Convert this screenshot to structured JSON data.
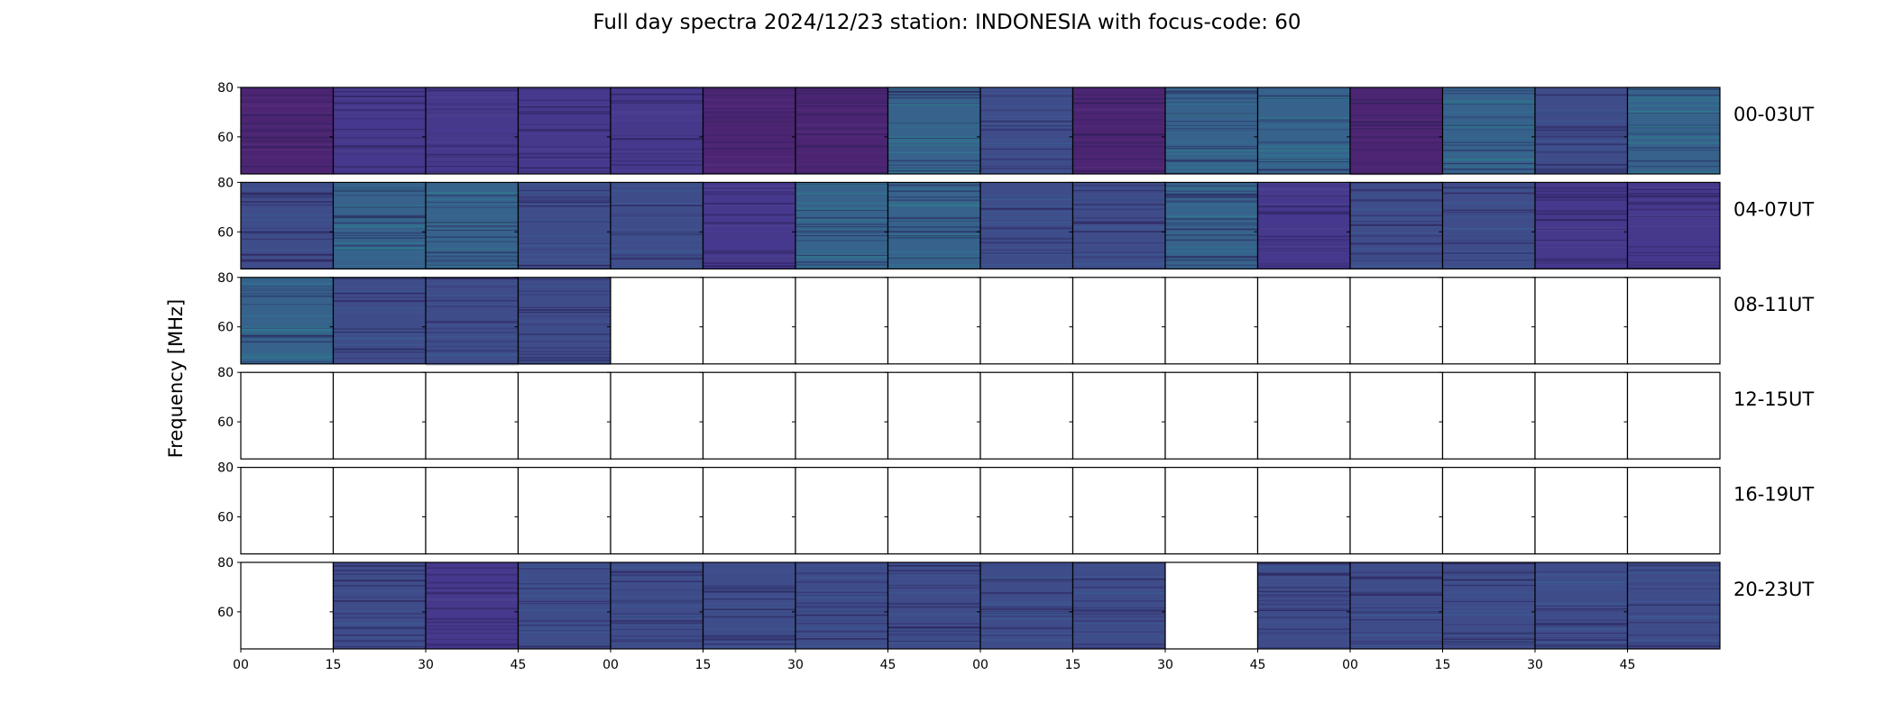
{
  "chart_data": {
    "type": "heatmap",
    "title": "Full day spectra 2024/12/23 station: INDONESIA with focus-code: 60",
    "xlabel": "",
    "ylabel": "Frequency [MHz]",
    "ylim": [
      45,
      80
    ],
    "yticks": [
      "80",
      "60"
    ],
    "xticks": [
      "00",
      "15",
      "30",
      "45",
      "00",
      "15",
      "30",
      "45",
      "00",
      "15",
      "30",
      "45",
      "00",
      "15",
      "30",
      "45"
    ],
    "colors": {
      "violet": "#4b2572",
      "purple_blue": "#46388c",
      "blue": "#3f4c8a",
      "teal_blue": "#36628c",
      "empty": "#ffffff"
    },
    "rows": [
      {
        "label": "00-03UT",
        "panels": [
          "violet",
          "purple_blue",
          "purple_blue",
          "purple_blue",
          "purple_blue",
          "violet",
          "violet",
          "teal_blue",
          "blue",
          "violet",
          "teal_blue",
          "teal_blue",
          "violet",
          "teal_blue",
          "blue",
          "teal_blue"
        ]
      },
      {
        "label": "04-07UT",
        "panels": [
          "blue",
          "teal_blue",
          "teal_blue",
          "blue",
          "blue",
          "purple_blue",
          "teal_blue",
          "teal_blue",
          "blue",
          "blue",
          "teal_blue",
          "purple_blue",
          "blue",
          "blue",
          "purple_blue",
          "purple_blue"
        ]
      },
      {
        "label": "08-11UT",
        "panels": [
          "teal_blue",
          "blue",
          "blue",
          "blue",
          "empty",
          "empty",
          "empty",
          "empty",
          "empty",
          "empty",
          "empty",
          "empty",
          "empty",
          "empty",
          "empty",
          "empty"
        ]
      },
      {
        "label": "12-15UT",
        "panels": [
          "empty",
          "empty",
          "empty",
          "empty",
          "empty",
          "empty",
          "empty",
          "empty",
          "empty",
          "empty",
          "empty",
          "empty",
          "empty",
          "empty",
          "empty",
          "empty"
        ]
      },
      {
        "label": "16-19UT",
        "panels": [
          "empty",
          "empty",
          "empty",
          "empty",
          "empty",
          "empty",
          "empty",
          "empty",
          "empty",
          "empty",
          "empty",
          "empty",
          "empty",
          "empty",
          "empty",
          "empty"
        ]
      },
      {
        "label": "20-23UT",
        "panels": [
          "empty",
          "blue",
          "purple_blue",
          "blue",
          "blue",
          "blue",
          "blue",
          "blue",
          "blue",
          "blue",
          "empty",
          "blue",
          "blue",
          "blue",
          "blue",
          "blue"
        ]
      }
    ]
  }
}
